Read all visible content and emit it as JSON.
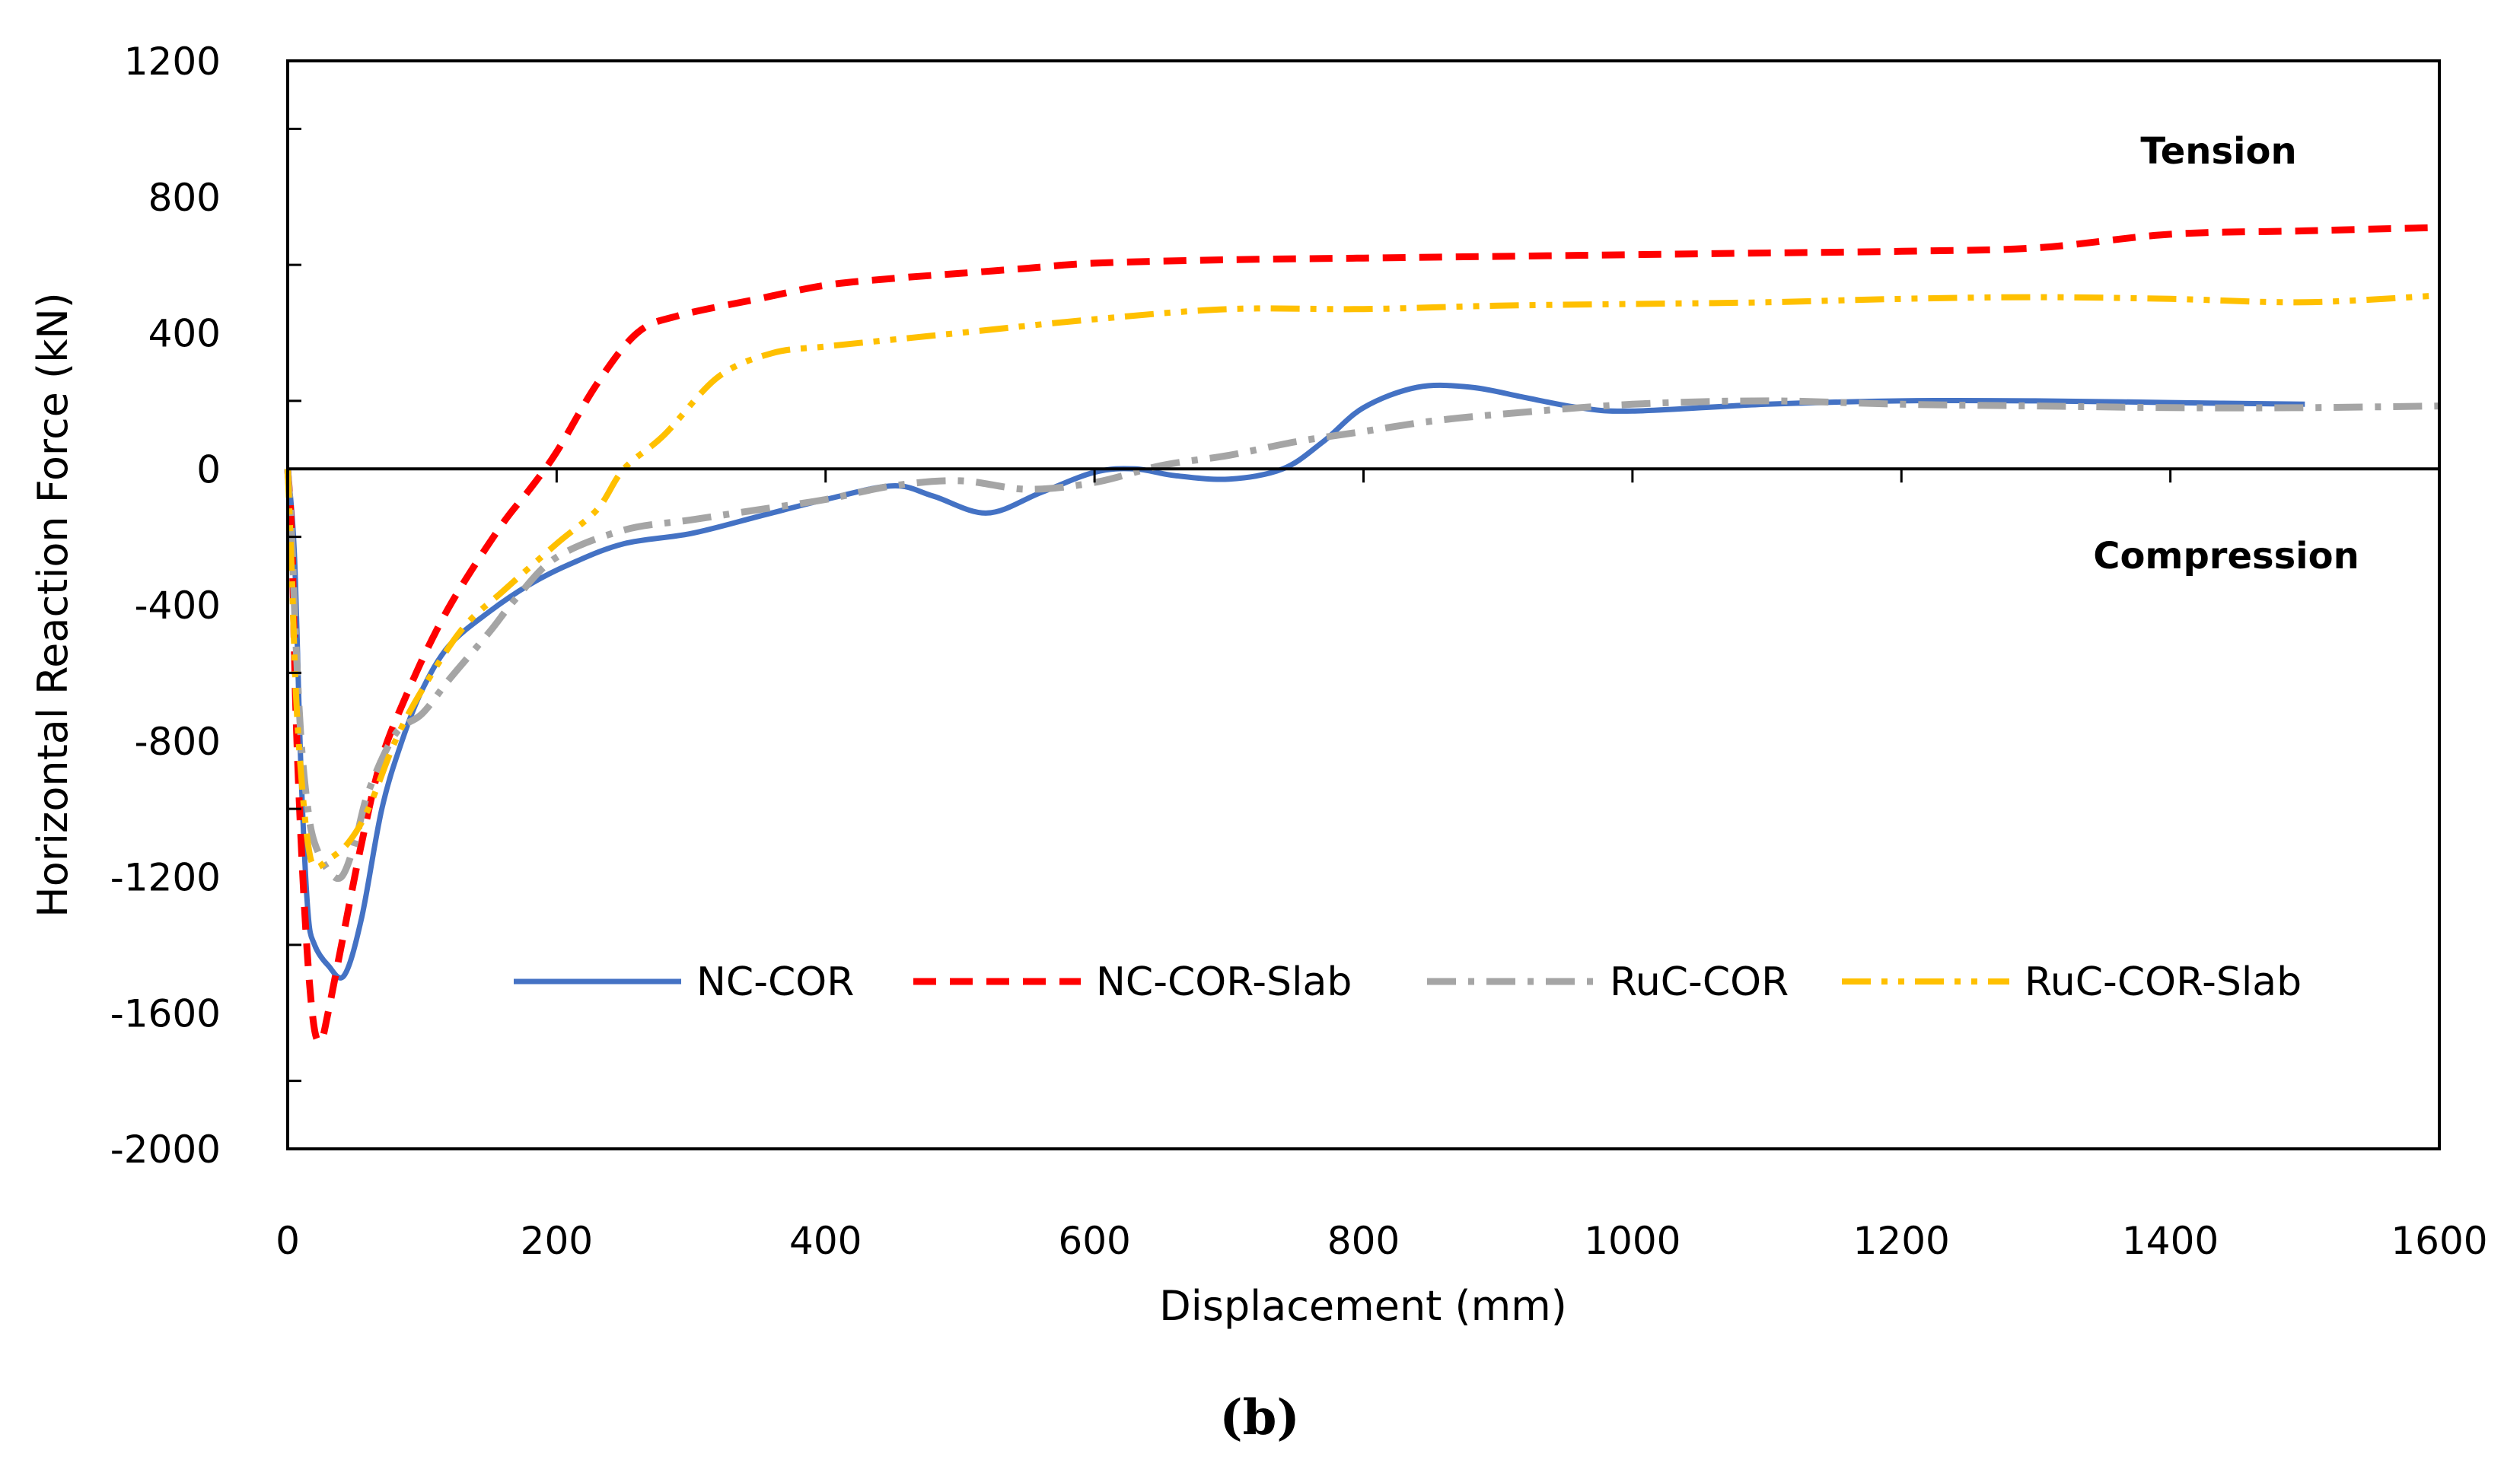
{
  "chart_data": {
    "type": "line",
    "title": "",
    "xlabel": "Displacement (mm)",
    "ylabel": "Horizontal Reaction Force  (kN)",
    "xlim": [
      0,
      1600
    ],
    "ylim": [
      -2000,
      1200
    ],
    "xticks": [
      "0",
      "200",
      "400",
      "600",
      "800",
      "1000",
      "1200",
      "1400",
      "1600"
    ],
    "yticks": [
      "1200",
      "800",
      "400",
      "0",
      "-400",
      "-800",
      "-1200",
      "-1600",
      "-2000"
    ],
    "annotations": {
      "tension": "Tension",
      "compression": "Compression"
    },
    "caption": "(b)",
    "legend_position": "bottom-center",
    "series": [
      {
        "name": "NC-COR",
        "color": "#4472C4",
        "style": "solid",
        "x": [
          0,
          5,
          10,
          15,
          20,
          30,
          42,
          55,
          70,
          85,
          100,
          120,
          150,
          180,
          210,
          250,
          300,
          350,
          400,
          450,
          480,
          520,
          560,
          600,
          630,
          660,
          700,
          740,
          770,
          800,
          840,
          880,
          920,
          960,
          1000,
          1100,
          1200,
          1300,
          1400,
          1500
        ],
        "y": [
          0,
          -250,
          -900,
          -1300,
          -1400,
          -1460,
          -1490,
          -1320,
          -1000,
          -800,
          -650,
          -520,
          -420,
          -340,
          -280,
          -220,
          -190,
          -140,
          -90,
          -50,
          -80,
          -130,
          -70,
          -10,
          0,
          -20,
          -30,
          0,
          80,
          180,
          240,
          240,
          210,
          180,
          170,
          190,
          200,
          200,
          195,
          190
        ]
      },
      {
        "name": "NC-COR-Slab",
        "color": "#FF0000",
        "style": "dashed",
        "x": [
          0,
          3,
          6,
          10,
          15,
          20,
          25,
          30,
          40,
          55,
          70,
          90,
          110,
          130,
          160,
          180,
          200,
          230,
          260,
          290,
          350,
          400,
          450,
          500,
          550,
          600,
          700,
          800,
          900,
          1000,
          1100,
          1200,
          1300,
          1400,
          1500,
          1600
        ],
        "y": [
          0,
          -200,
          -700,
          -1100,
          -1450,
          -1650,
          -1680,
          -1600,
          -1400,
          -1100,
          -850,
          -650,
          -480,
          -340,
          -160,
          -60,
          50,
          250,
          400,
          450,
          500,
          540,
          560,
          575,
          590,
          605,
          615,
          620,
          625,
          630,
          635,
          640,
          650,
          690,
          700,
          710
        ]
      },
      {
        "name": "RuC-COR",
        "color": "#A5A5A5",
        "style": "dash-dot",
        "x": [
          0,
          3,
          6,
          10,
          15,
          20,
          30,
          40,
          50,
          60,
          80,
          100,
          120,
          150,
          170,
          200,
          250,
          300,
          350,
          400,
          450,
          500,
          550,
          600,
          650,
          700,
          750,
          800,
          850,
          900,
          1000,
          1100,
          1200,
          1300,
          1400,
          1500,
          1600
        ],
        "y": [
          0,
          -200,
          -500,
          -800,
          -1000,
          -1100,
          -1180,
          -1200,
          -1100,
          -950,
          -780,
          -720,
          -620,
          -480,
          -380,
          -260,
          -180,
          -150,
          -120,
          -90,
          -50,
          -35,
          -60,
          -40,
          10,
          40,
          80,
          110,
          140,
          160,
          190,
          200,
          190,
          185,
          180,
          180,
          185
        ]
      },
      {
        "name": "RuC-COR-Slab",
        "color": "#FFC000",
        "style": "dash-dot-dot",
        "x": [
          0,
          3,
          6,
          10,
          15,
          20,
          30,
          45,
          60,
          80,
          100,
          130,
          160,
          200,
          230,
          250,
          280,
          320,
          360,
          400,
          450,
          500,
          600,
          700,
          800,
          900,
          1000,
          1100,
          1200,
          1300,
          1400,
          1500,
          1600
        ],
        "y": [
          0,
          -300,
          -650,
          -900,
          -1100,
          -1170,
          -1150,
          -1100,
          -1000,
          -800,
          -650,
          -470,
          -360,
          -220,
          -120,
          0,
          100,
          270,
          340,
          360,
          380,
          400,
          440,
          470,
          470,
          480,
          485,
          490,
          500,
          505,
          500,
          490,
          510
        ]
      }
    ]
  }
}
